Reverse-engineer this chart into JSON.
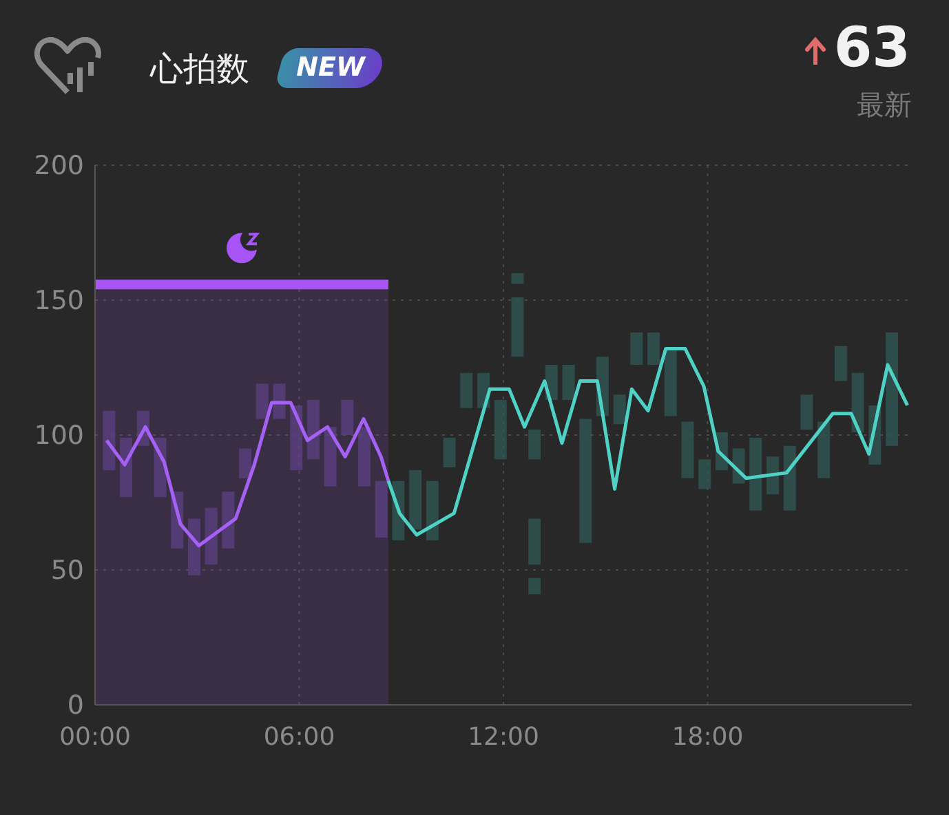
{
  "chart_data": {
    "type": "bar",
    "title": "心拍数",
    "annotations": [
      "NEW",
      "63",
      "最新"
    ],
    "x": [
      0.4,
      0.9,
      1.4,
      1.9,
      2.4,
      2.9,
      3.4,
      3.9,
      4.4,
      4.9,
      5.4,
      5.9,
      6.4,
      6.9,
      7.4,
      7.9,
      8.4,
      8.9,
      9.4,
      9.9,
      10.4,
      10.9,
      11.4,
      11.9,
      12.4,
      12.9,
      13.4,
      13.9,
      14.4,
      14.9,
      15.4,
      15.9,
      16.4,
      16.9,
      17.4,
      17.9,
      18.4,
      18.9,
      19.4,
      19.9,
      20.4,
      20.9,
      21.4,
      21.9,
      22.4,
      22.9,
      23.4
    ],
    "series": [
      {
        "base": [
          87,
          77,
          96,
          77,
          58,
          48,
          52,
          58,
          84,
          106,
          106,
          87,
          91,
          81,
          100,
          81,
          62,
          61,
          65,
          61,
          88,
          110,
          110,
          91,
          129,
          91,
          113,
          113,
          60,
          107,
          104,
          126,
          126,
          107,
          84,
          80,
          87,
          82,
          72,
          78,
          72,
          102,
          84,
          120,
          101,
          89,
          96
        ],
        "values": [
          22,
          22,
          13,
          22,
          21,
          21,
          21,
          21,
          11,
          13,
          13,
          24,
          22,
          22,
          13,
          22,
          21,
          22,
          22,
          22,
          11,
          13,
          13,
          22,
          22,
          11,
          13,
          13,
          46,
          22,
          11,
          12,
          12,
          25,
          21,
          11,
          14,
          13,
          27,
          14,
          24,
          13,
          21,
          13,
          22,
          22,
          42
        ],
        "colors": [
          "#5b4183",
          "#5b4183",
          "#5b4183",
          "#5b4183",
          "#5b4183",
          "#5b4183",
          "#5b4183",
          "#5b4183",
          "#5b4183",
          "#5b4183",
          "#5b4183",
          "#5b4183",
          "#5b4183",
          "#5b4183",
          "#5b4183",
          "#5b4183",
          "#5b4183",
          "#2f5856",
          "#2f5856",
          "#2f5856",
          "#2f5856",
          "#2f5856",
          "#2f5856",
          "#2f5856",
          "#2f5856",
          "#2f5856",
          "#2f5856",
          "#2f5856",
          "#2f5856",
          "#2f5856",
          "#2f5856",
          "#2f5856",
          "#2f5856",
          "#2f5856",
          "#2f5856",
          "#2f5856",
          "#2f5856",
          "#2f5856",
          "#2f5856",
          "#2f5856",
          "#2f5856",
          "#2f5856",
          "#2f5856",
          "#2f5856",
          "#2f5856",
          "#2f5856",
          "#2f5856"
        ]
      },
      {
        "color": "#2f5856",
        "base": [
          null,
          null,
          null,
          null,
          null,
          null,
          null,
          null,
          null,
          null,
          null,
          null,
          null,
          null,
          null,
          null,
          null,
          null,
          null,
          null,
          null,
          null,
          null,
          null,
          156,
          52,
          null,
          null,
          null,
          null,
          null,
          null,
          null,
          null,
          null,
          null,
          null,
          null,
          null,
          null,
          null,
          null,
          null,
          null,
          null,
          null,
          null
        ],
        "values": [
          null,
          null,
          null,
          null,
          null,
          null,
          null,
          null,
          null,
          null,
          null,
          null,
          null,
          null,
          null,
          null,
          null,
          null,
          null,
          null,
          null,
          null,
          null,
          null,
          4,
          17,
          null,
          null,
          null,
          null,
          null,
          null,
          null,
          null,
          null,
          null,
          null,
          null,
          null,
          null,
          null,
          null,
          null,
          null,
          null,
          null,
          null
        ]
      },
      {
        "color": "#2f5856",
        "base": [
          null,
          null,
          null,
          null,
          null,
          null,
          null,
          null,
          null,
          null,
          null,
          null,
          null,
          null,
          null,
          null,
          null,
          null,
          null,
          null,
          null,
          null,
          null,
          null,
          null,
          41,
          null,
          null,
          null,
          null,
          null,
          null,
          null,
          null,
          null,
          null,
          null,
          null,
          null,
          null,
          null,
          null,
          null,
          null,
          null,
          null,
          null
        ],
        "values": [
          null,
          null,
          null,
          null,
          null,
          null,
          null,
          null,
          null,
          null,
          null,
          null,
          null,
          null,
          null,
          null,
          null,
          null,
          null,
          null,
          null,
          null,
          null,
          null,
          null,
          6,
          null,
          null,
          null,
          null,
          null,
          null,
          null,
          null,
          null,
          null,
          null,
          null,
          null,
          null,
          null,
          null,
          null,
          null,
          null,
          null,
          null
        ]
      },
      {
        "type": "line",
        "color": "#a561f5",
        "x": [
          0.34,
          0.87,
          1.48,
          2.03,
          2.51,
          3.05,
          4.13,
          4.68,
          5.19,
          5.75,
          6.24,
          6.83,
          7.35,
          7.89,
          8.4,
          8.62
        ],
        "values": [
          98,
          89,
          103,
          90,
          67,
          59,
          69,
          89,
          112,
          112,
          98,
          103,
          92,
          106,
          92,
          83
        ]
      },
      {
        "type": "line",
        "color": "#4fd1c5",
        "x": [
          8.62,
          8.95,
          9.45,
          10.55,
          11.6,
          12.17,
          12.62,
          13.21,
          13.72,
          14.25,
          14.76,
          15.27,
          15.77,
          16.25,
          16.77,
          17.34,
          17.89,
          18.31,
          19.13,
          20.32,
          21.68,
          22.22,
          22.74,
          23.29,
          23.87
        ],
        "values": [
          83,
          71,
          63,
          71,
          117,
          117,
          103,
          120,
          97,
          120,
          120,
          80,
          117,
          109,
          132,
          132,
          118,
          94,
          84,
          86,
          108,
          108,
          93,
          126,
          111
        ]
      }
    ],
    "xlim": [
      0,
      24
    ],
    "xticks": [
      {
        "value": 0,
        "label": "00:00"
      },
      {
        "value": 6,
        "label": "06:00"
      },
      {
        "value": 12,
        "label": "12:00"
      },
      {
        "value": 18,
        "label": "18:00"
      }
    ],
    "ylim": [
      0,
      200
    ],
    "yticks": [
      0,
      50,
      100,
      150,
      200
    ],
    "bands": [
      {
        "axis": "x",
        "from": 0,
        "to": 8.62,
        "color": "#a855f7"
      }
    ],
    "grid": true,
    "legend": false
  }
}
